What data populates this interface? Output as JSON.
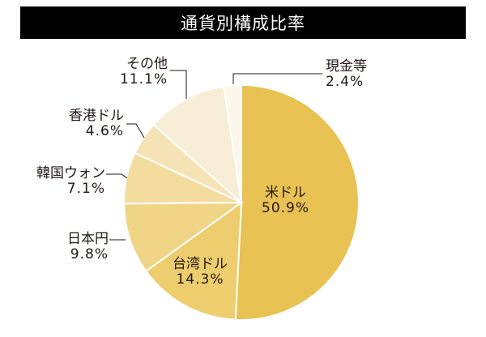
{
  "header": {
    "title": "通貨別構成比率"
  },
  "labels": {
    "usd": {
      "name": "米ドル",
      "pct": "50.9%"
    },
    "twd": {
      "name": "台湾ドル",
      "pct": "14.3%"
    },
    "jpy": {
      "name": "日本円",
      "pct": "9.8%"
    },
    "krw": {
      "name": "韓国ウォン",
      "pct": "7.1%"
    },
    "hkd": {
      "name": "香港ドル",
      "pct": "4.6%"
    },
    "other": {
      "name": "その他",
      "pct": "11.1%"
    },
    "cash": {
      "name": "現金等",
      "pct": "2.4%"
    }
  },
  "chart_data": {
    "type": "pie",
    "title": "通貨別構成比率",
    "categories": [
      "米ドル",
      "台湾ドル",
      "日本円",
      "韓国ウォン",
      "香港ドル",
      "その他",
      "現金等"
    ],
    "values": [
      50.9,
      14.3,
      9.8,
      7.1,
      4.6,
      11.1,
      2.4
    ],
    "unit": "%",
    "colors": [
      "#E8C252",
      "#EECD6E",
      "#F1D586",
      "#F3DC9E",
      "#F5E3B5",
      "#F8EDD6",
      "#FBF7EA"
    ],
    "start_angle": "12 o'clock",
    "direction": "clockwise",
    "legend": "none (direct labels with leader lines)"
  }
}
